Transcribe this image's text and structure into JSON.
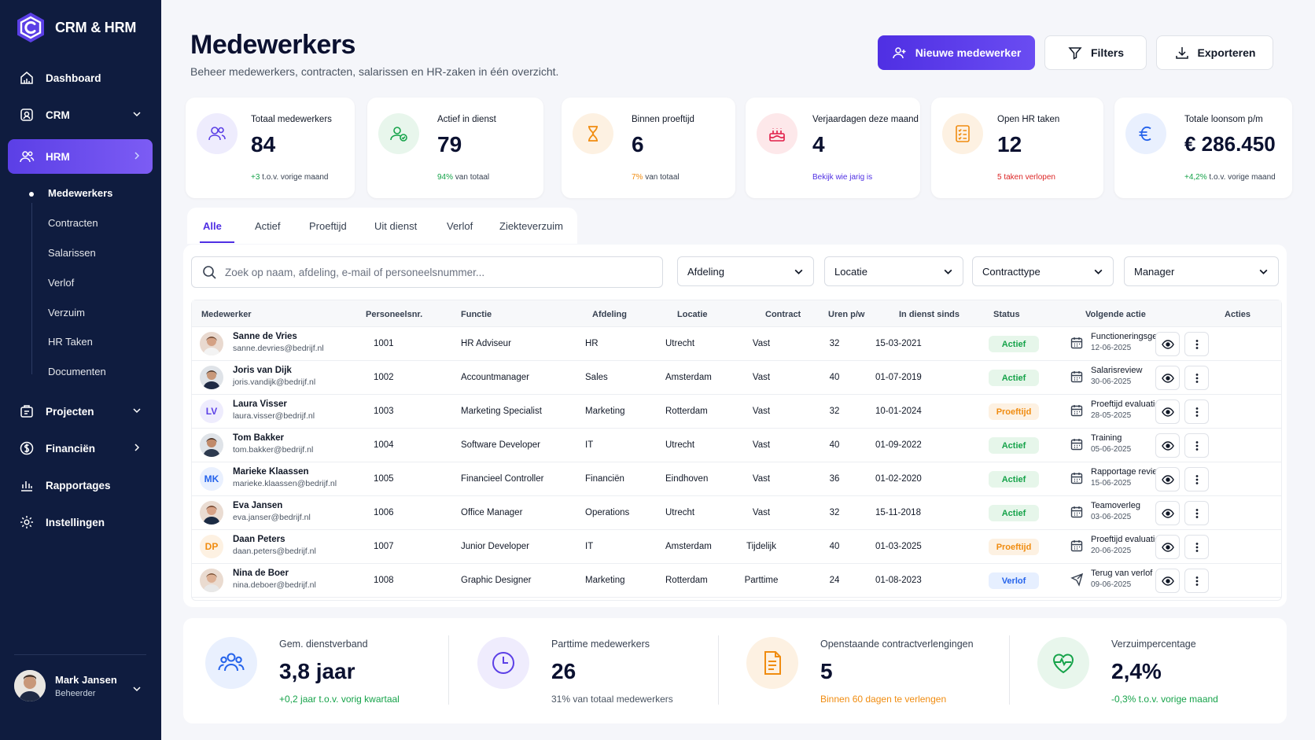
{
  "app": {
    "name": "CRM & HRM"
  },
  "sidebar": {
    "items": [
      {
        "label": "Dashboard",
        "icon": "dashboard-icon"
      },
      {
        "label": "CRM",
        "icon": "crm-icon"
      },
      {
        "label": "HRM",
        "icon": "users-icon"
      },
      {
        "label": "Projecten",
        "icon": "projects-icon"
      },
      {
        "label": "Financiën",
        "icon": "finance-icon"
      },
      {
        "label": "Rapportages",
        "icon": "chart-icon"
      },
      {
        "label": "Instellingen",
        "icon": "gear-icon"
      }
    ],
    "hrm_sub": [
      "Medewerkers",
      "Contracten",
      "Salarissen",
      "Verlof",
      "Verzuim",
      "HR Taken",
      "Documenten"
    ],
    "user": {
      "name": "Mark Jansen",
      "role": "Beheerder"
    }
  },
  "header": {
    "title": "Medewerkers",
    "subtitle": "Beheer medewerkers, contracten, salarissen en HR-zaken in één overzicht.",
    "new_label": "Nieuwe medewerker",
    "filters_label": "Filters",
    "export_label": "Exporteren"
  },
  "colors": {
    "accent": "#4f2fe3",
    "sidebar": "#0f1c3f",
    "green": "#16a34a",
    "orange": "#f08c10",
    "red": "#dc2626",
    "blue": "#2563eb"
  },
  "stats": [
    {
      "label": "Totaal medewerkers",
      "value": "84",
      "note_em": "+3",
      "note": " t.o.v. vorige maand"
    },
    {
      "label": "Actief in dienst",
      "value": "79",
      "note_em": "94%",
      "note": " van totaal"
    },
    {
      "label": "Binnen proeftijd",
      "value": "6",
      "note_em": "7%",
      "note": " van totaal"
    },
    {
      "label": "Verjaardagen deze maand",
      "value": "4",
      "note_em": "Bekijk wie jarig is",
      "note": ""
    },
    {
      "label": "Open HR taken",
      "value": "12",
      "note_em": "5 taken verlopen",
      "note": ""
    },
    {
      "label": "Totale loonsom p/m",
      "value": "€ 286.450",
      "note_em": "+4,2%",
      "note": " t.o.v. vorige maand"
    }
  ],
  "tabs": [
    "Alle",
    "Actief",
    "Proeftijd",
    "Uit dienst",
    "Verlof",
    "Ziekteverzuim"
  ],
  "search": {
    "placeholder": "Zoek op naam, afdeling, e-mail of personeelsnummer..."
  },
  "filters": [
    "Afdeling",
    "Locatie",
    "Contracttype",
    "Manager"
  ],
  "table": {
    "headers": [
      "Medewerker",
      "Personeelsnr.",
      "Functie",
      "Afdeling",
      "Locatie",
      "Contract",
      "Uren p/w",
      "In dienst sinds",
      "Status",
      "Volgende actie",
      "Acties"
    ],
    "rows": [
      {
        "name": "Sanne de Vries",
        "email": "sanne.devries@bedrijf.nl",
        "nr": "1001",
        "functie": "HR Adviseur",
        "afdeling": "HR",
        "locatie": "Utrecht",
        "contract": "Vast",
        "uren": "32",
        "sinds": "15-03-2021",
        "status": "Actief",
        "actie": "Functioneringsgesprek",
        "datum": "12-06-2025"
      },
      {
        "name": "Joris van Dijk",
        "email": "joris.vandijk@bedrijf.nl",
        "nr": "1002",
        "functie": "Accountmanager",
        "afdeling": "Sales",
        "locatie": "Amsterdam",
        "contract": "Vast",
        "uren": "40",
        "sinds": "01-07-2019",
        "status": "Actief",
        "actie": "Salarisreview",
        "datum": "30-06-2025"
      },
      {
        "name": "Laura Visser",
        "email": "laura.visser@bedrijf.nl",
        "initials": "LV",
        "nr": "1003",
        "functie": "Marketing Specialist",
        "afdeling": "Marketing",
        "locatie": "Rotterdam",
        "contract": "Vast",
        "uren": "32",
        "sinds": "10-01-2024",
        "status": "Proeftijd",
        "actie": "Proeftijd evaluatie",
        "datum": "28-05-2025"
      },
      {
        "name": "Tom Bakker",
        "email": "tom.bakker@bedrijf.nl",
        "nr": "1004",
        "functie": "Software Developer",
        "afdeling": "IT",
        "locatie": "Utrecht",
        "contract": "Vast",
        "uren": "40",
        "sinds": "01-09-2022",
        "status": "Actief",
        "actie": "Training",
        "datum": "05-06-2025"
      },
      {
        "name": "Marieke Klaassen",
        "email": "marieke.klaassen@bedrijf.nl",
        "initials": "MK",
        "nr": "1005",
        "functie": "Financieel Controller",
        "afdeling": "Financiën",
        "locatie": "Eindhoven",
        "contract": "Vast",
        "uren": "36",
        "sinds": "01-02-2020",
        "status": "Actief",
        "actie": "Rapportage review",
        "datum": "15-06-2025"
      },
      {
        "name": "Eva Jansen",
        "email": "eva.janser@bedrijf.nl",
        "nr": "1006",
        "functie": "Office Manager",
        "afdeling": "Operations",
        "locatie": "Utrecht",
        "contract": "Vast",
        "uren": "32",
        "sinds": "15-11-2018",
        "status": "Actief",
        "actie": "Teamoverleg",
        "datum": "03-06-2025"
      },
      {
        "name": "Daan Peters",
        "email": "daan.peters@bedrijf.nl",
        "initials": "DP",
        "nr": "1007",
        "functie": "Junior Developer",
        "afdeling": "IT",
        "locatie": "Amsterdam",
        "contract": "Tijdelijk",
        "uren": "40",
        "sinds": "01-03-2025",
        "status": "Proeftijd",
        "actie": "Proeftijd evaluatie",
        "datum": "20-06-2025"
      },
      {
        "name": "Nina de Boer",
        "email": "nina.deboer@bedrijf.nl",
        "nr": "1008",
        "functie": "Graphic Designer",
        "afdeling": "Marketing",
        "locatie": "Rotterdam",
        "contract": "Parttime",
        "uren": "24",
        "sinds": "01-08-2023",
        "status": "Verlof",
        "actie": "Terug van verlof",
        "datum": "09-06-2025"
      }
    ]
  },
  "bottom": [
    {
      "label": "Gem. dienstverband",
      "value": "3,8 jaar",
      "note": "+0,2 jaar t.o.v. vorig kwartaal"
    },
    {
      "label": "Parttime medewerkers",
      "value": "26",
      "note": "31% van totaal medewerkers"
    },
    {
      "label": "Openstaande contractverlengingen",
      "value": "5",
      "note": "Binnen 60 dagen te verlengen"
    },
    {
      "label": "Verzuimpercentage",
      "value": "2,4%",
      "note": "-0,3% t.o.v. vorige maand"
    }
  ]
}
